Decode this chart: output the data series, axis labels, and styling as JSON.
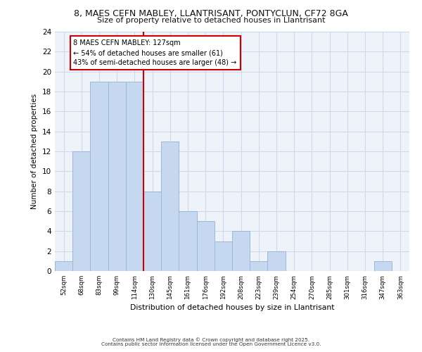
{
  "title_line1": "8, MAES CEFN MABLEY, LLANTRISANT, PONTYCLUN, CF72 8GA",
  "title_line2": "Size of property relative to detached houses in Llantrisant",
  "xlabel": "Distribution of detached houses by size in Llantrisant",
  "ylabel": "Number of detached properties",
  "bin_labels": [
    "52sqm",
    "68sqm",
    "83sqm",
    "99sqm",
    "114sqm",
    "130sqm",
    "145sqm",
    "161sqm",
    "176sqm",
    "192sqm",
    "208sqm",
    "223sqm",
    "239sqm",
    "254sqm",
    "270sqm",
    "285sqm",
    "301sqm",
    "316sqm",
    "347sqm",
    "363sqm"
  ],
  "bar_heights": [
    1,
    12,
    19,
    19,
    19,
    8,
    13,
    6,
    5,
    3,
    4,
    1,
    2,
    0,
    0,
    0,
    0,
    0,
    1,
    0
  ],
  "bar_color": "#c5d8f0",
  "bar_edge_color": "#9ab8d8",
  "vline_x": 4.5,
  "vline_color": "#cc0000",
  "annotation_title": "8 MAES CEFN MABLEY: 127sqm",
  "annotation_line1": "← 54% of detached houses are smaller (61)",
  "annotation_line2": "43% of semi-detached houses are larger (48) →",
  "annotation_box_color": "#ffffff",
  "annotation_box_edge": "#cc0000",
  "ylim": [
    0,
    24
  ],
  "yticks": [
    0,
    2,
    4,
    6,
    8,
    10,
    12,
    14,
    16,
    18,
    20,
    22,
    24
  ],
  "grid_color": "#ccdaeb",
  "background_color": "#eef3fa",
  "footer_line1": "Contains HM Land Registry data © Crown copyright and database right 2025.",
  "footer_line2": "Contains public sector information licensed under the Open Government Licence v3.0."
}
